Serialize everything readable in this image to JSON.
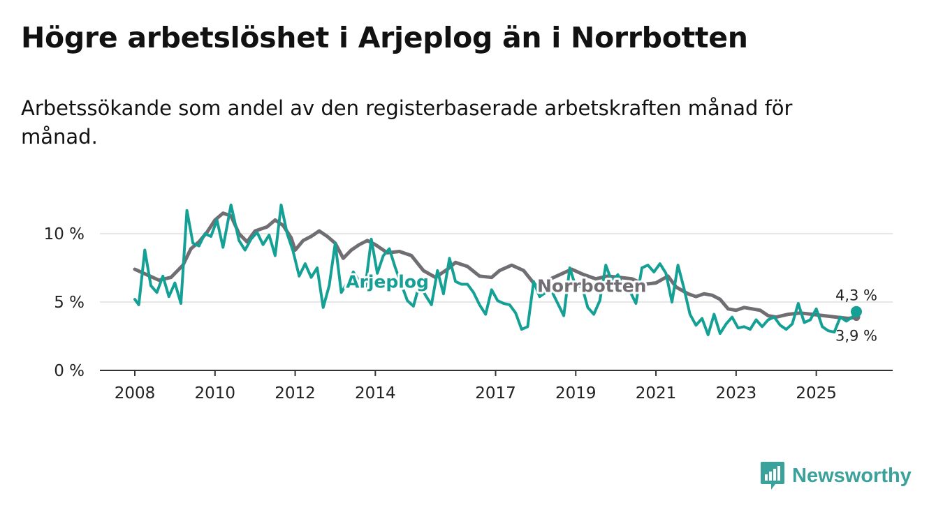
{
  "chart_data": {
    "type": "line",
    "title": "Högre arbetslöshet i Arjeplog än i Norrbotten",
    "subtitle": "Arbetssökande som andel av den registerbaserade arbetskraften månad för månad.",
    "xlabel": "",
    "ylabel": "",
    "xlim": [
      2008,
      2026.2
    ],
    "ylim": [
      0,
      12.5
    ],
    "y_ticks": [
      {
        "value": 0,
        "label": "0 %"
      },
      {
        "value": 5,
        "label": "5 %"
      },
      {
        "value": 10,
        "label": "10 %"
      }
    ],
    "x_ticks": [
      {
        "value": 2008,
        "label": "2008"
      },
      {
        "value": 2010,
        "label": "2010"
      },
      {
        "value": 2012,
        "label": "2012"
      },
      {
        "value": 2014,
        "label": "2014"
      },
      {
        "value": 2017,
        "label": "2017"
      },
      {
        "value": 2019,
        "label": "2019"
      },
      {
        "value": 2021,
        "label": "2021"
      },
      {
        "value": 2023,
        "label": "2023"
      },
      {
        "value": 2025,
        "label": "2025"
      }
    ],
    "grid": true,
    "series": [
      {
        "name": "Norrbotten",
        "color": "#706e73",
        "end_label": "3,9 %",
        "points": [
          [
            2008.0,
            7.4
          ],
          [
            2008.3,
            7.0
          ],
          [
            2008.6,
            6.6
          ],
          [
            2008.9,
            6.8
          ],
          [
            2009.2,
            7.7
          ],
          [
            2009.4,
            8.9
          ],
          [
            2009.6,
            9.4
          ],
          [
            2009.8,
            10.1
          ],
          [
            2010.0,
            11.0
          ],
          [
            2010.2,
            11.5
          ],
          [
            2010.4,
            11.3
          ],
          [
            2010.6,
            10.0
          ],
          [
            2010.8,
            9.4
          ],
          [
            2011.0,
            10.2
          ],
          [
            2011.3,
            10.5
          ],
          [
            2011.5,
            11.0
          ],
          [
            2011.7,
            10.6
          ],
          [
            2011.9,
            9.7
          ],
          [
            2012.0,
            8.8
          ],
          [
            2012.2,
            9.5
          ],
          [
            2012.4,
            9.8
          ],
          [
            2012.6,
            10.2
          ],
          [
            2012.8,
            9.8
          ],
          [
            2013.0,
            9.3
          ],
          [
            2013.2,
            8.2
          ],
          [
            2013.4,
            8.8
          ],
          [
            2013.6,
            9.2
          ],
          [
            2013.8,
            9.5
          ],
          [
            2014.0,
            9.2
          ],
          [
            2014.3,
            8.6
          ],
          [
            2014.6,
            8.7
          ],
          [
            2014.9,
            8.4
          ],
          [
            2015.2,
            7.3
          ],
          [
            2015.5,
            6.8
          ],
          [
            2015.8,
            7.4
          ],
          [
            2016.0,
            7.9
          ],
          [
            2016.3,
            7.6
          ],
          [
            2016.6,
            6.9
          ],
          [
            2016.9,
            6.8
          ],
          [
            2017.1,
            7.3
          ],
          [
            2017.4,
            7.7
          ],
          [
            2017.7,
            7.3
          ],
          [
            2018.0,
            6.2
          ],
          [
            2018.3,
            6.6
          ],
          [
            2018.6,
            7.0
          ],
          [
            2018.9,
            7.4
          ],
          [
            2019.2,
            7.0
          ],
          [
            2019.5,
            6.7
          ],
          [
            2019.8,
            6.9
          ],
          [
            2020.1,
            6.8
          ],
          [
            2020.4,
            6.7
          ],
          [
            2020.7,
            6.3
          ],
          [
            2021.0,
            6.4
          ],
          [
            2021.3,
            6.9
          ],
          [
            2021.5,
            6.1
          ],
          [
            2021.8,
            5.6
          ],
          [
            2022.0,
            5.4
          ],
          [
            2022.2,
            5.6
          ],
          [
            2022.4,
            5.5
          ],
          [
            2022.6,
            5.2
          ],
          [
            2022.8,
            4.5
          ],
          [
            2023.0,
            4.4
          ],
          [
            2023.2,
            4.6
          ],
          [
            2023.4,
            4.5
          ],
          [
            2023.6,
            4.4
          ],
          [
            2023.8,
            4.0
          ],
          [
            2024.0,
            3.9
          ],
          [
            2024.3,
            4.1
          ],
          [
            2024.6,
            4.2
          ],
          [
            2024.9,
            4.1
          ],
          [
            2025.2,
            4.0
          ],
          [
            2025.5,
            3.9
          ],
          [
            2025.8,
            3.8
          ],
          [
            2026.0,
            3.9
          ]
        ]
      },
      {
        "name": "Arjeplog",
        "color": "#14a095",
        "end_label": "4,3 %",
        "points": [
          [
            2008.0,
            5.2
          ],
          [
            2008.1,
            4.8
          ],
          [
            2008.25,
            8.8
          ],
          [
            2008.4,
            6.2
          ],
          [
            2008.55,
            5.7
          ],
          [
            2008.7,
            6.9
          ],
          [
            2008.85,
            5.4
          ],
          [
            2009.0,
            6.4
          ],
          [
            2009.15,
            4.9
          ],
          [
            2009.3,
            11.7
          ],
          [
            2009.45,
            9.3
          ],
          [
            2009.6,
            9.1
          ],
          [
            2009.75,
            10.0
          ],
          [
            2009.9,
            9.8
          ],
          [
            2010.05,
            11.0
          ],
          [
            2010.2,
            9.0
          ],
          [
            2010.4,
            12.1
          ],
          [
            2010.6,
            9.5
          ],
          [
            2010.75,
            8.8
          ],
          [
            2010.9,
            9.6
          ],
          [
            2011.05,
            10.1
          ],
          [
            2011.2,
            9.2
          ],
          [
            2011.35,
            9.9
          ],
          [
            2011.5,
            8.4
          ],
          [
            2011.65,
            12.1
          ],
          [
            2011.8,
            10.0
          ],
          [
            2011.95,
            8.7
          ],
          [
            2012.1,
            6.9
          ],
          [
            2012.25,
            7.8
          ],
          [
            2012.4,
            6.8
          ],
          [
            2012.55,
            7.5
          ],
          [
            2012.7,
            4.6
          ],
          [
            2012.85,
            6.2
          ],
          [
            2013.0,
            9.3
          ],
          [
            2013.15,
            5.7
          ],
          [
            2013.3,
            6.4
          ],
          [
            2013.45,
            7.2
          ],
          [
            2013.6,
            6.5
          ],
          [
            2013.75,
            6.1
          ],
          [
            2013.9,
            9.6
          ],
          [
            2014.05,
            7.1
          ],
          [
            2014.2,
            8.4
          ],
          [
            2014.35,
            8.9
          ],
          [
            2014.5,
            7.5
          ],
          [
            2014.65,
            6.3
          ],
          [
            2014.8,
            5.1
          ],
          [
            2014.95,
            4.7
          ],
          [
            2015.1,
            6.3
          ],
          [
            2015.25,
            5.5
          ],
          [
            2015.4,
            4.8
          ],
          [
            2015.55,
            7.3
          ],
          [
            2015.7,
            5.6
          ],
          [
            2015.85,
            8.2
          ],
          [
            2016.0,
            6.5
          ],
          [
            2016.15,
            6.3
          ],
          [
            2016.3,
            6.3
          ],
          [
            2016.45,
            5.7
          ],
          [
            2016.6,
            4.8
          ],
          [
            2016.75,
            4.1
          ],
          [
            2016.9,
            5.9
          ],
          [
            2017.05,
            5.1
          ],
          [
            2017.2,
            4.9
          ],
          [
            2017.35,
            4.8
          ],
          [
            2017.5,
            4.2
          ],
          [
            2017.65,
            3.0
          ],
          [
            2017.8,
            3.2
          ],
          [
            2017.95,
            6.5
          ],
          [
            2018.1,
            5.4
          ],
          [
            2018.25,
            5.7
          ],
          [
            2018.4,
            5.8
          ],
          [
            2018.55,
            4.9
          ],
          [
            2018.7,
            4.0
          ],
          [
            2018.85,
            7.5
          ],
          [
            2019.0,
            6.1
          ],
          [
            2019.15,
            6.2
          ],
          [
            2019.3,
            4.6
          ],
          [
            2019.45,
            4.1
          ],
          [
            2019.6,
            5.1
          ],
          [
            2019.75,
            7.7
          ],
          [
            2019.9,
            6.5
          ],
          [
            2020.05,
            7.0
          ],
          [
            2020.2,
            6.1
          ],
          [
            2020.35,
            5.8
          ],
          [
            2020.5,
            4.9
          ],
          [
            2020.65,
            7.5
          ],
          [
            2020.8,
            7.7
          ],
          [
            2020.95,
            7.2
          ],
          [
            2021.1,
            7.8
          ],
          [
            2021.25,
            7.1
          ],
          [
            2021.4,
            5.0
          ],
          [
            2021.55,
            7.7
          ],
          [
            2021.7,
            6.0
          ],
          [
            2021.85,
            4.1
          ],
          [
            2022.0,
            3.3
          ],
          [
            2022.15,
            3.8
          ],
          [
            2022.3,
            2.6
          ],
          [
            2022.45,
            4.1
          ],
          [
            2022.6,
            2.7
          ],
          [
            2022.75,
            3.4
          ],
          [
            2022.9,
            3.9
          ],
          [
            2023.05,
            3.1
          ],
          [
            2023.2,
            3.2
          ],
          [
            2023.35,
            3.0
          ],
          [
            2023.5,
            3.7
          ],
          [
            2023.65,
            3.2
          ],
          [
            2023.8,
            3.7
          ],
          [
            2023.95,
            3.9
          ],
          [
            2024.1,
            3.3
          ],
          [
            2024.25,
            3.0
          ],
          [
            2024.4,
            3.4
          ],
          [
            2024.55,
            4.9
          ],
          [
            2024.7,
            3.5
          ],
          [
            2024.85,
            3.7
          ],
          [
            2025.0,
            4.5
          ],
          [
            2025.15,
            3.2
          ],
          [
            2025.3,
            2.9
          ],
          [
            2025.45,
            2.8
          ],
          [
            2025.6,
            3.9
          ],
          [
            2025.75,
            3.6
          ],
          [
            2025.9,
            3.9
          ],
          [
            2026.0,
            4.3
          ]
        ]
      }
    ],
    "annotations": [
      {
        "series": "Arjeplog",
        "text": "Arjeplog",
        "at": [
          2014.3,
          6.5
        ]
      },
      {
        "series": "Norrbotten",
        "text": "Norrbotten",
        "at": [
          2019.4,
          6.2
        ]
      }
    ]
  },
  "brand": {
    "name": "Newsworthy"
  },
  "colors": {
    "accent": "#3aa19b",
    "grid": "#dddddd",
    "axis": "#333333"
  }
}
